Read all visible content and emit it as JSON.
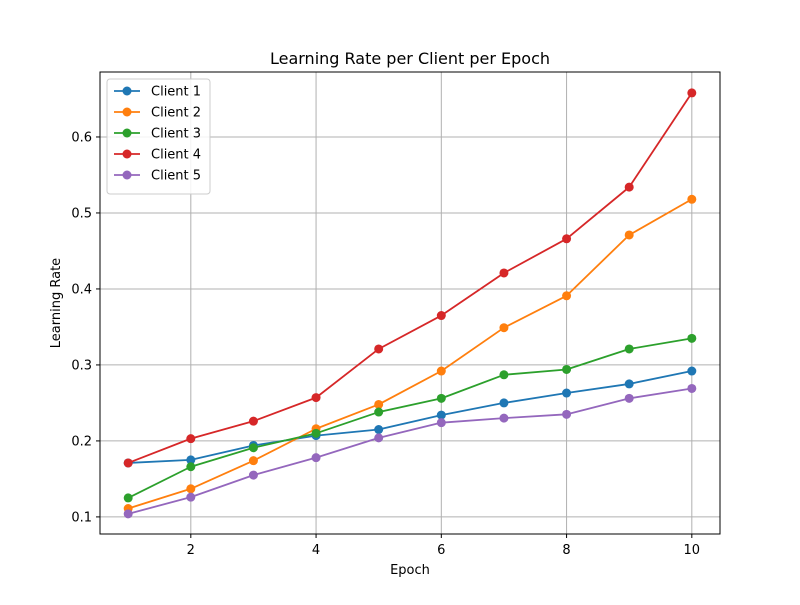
{
  "chart_data": {
    "type": "line",
    "title": "Learning Rate per Client per Epoch",
    "xlabel": "Epoch",
    "ylabel": "Learning Rate",
    "xlim": [
      0.55,
      10.45
    ],
    "ylim": [
      0.0775,
      0.6855
    ],
    "xticks": [
      2,
      4,
      6,
      8,
      10
    ],
    "yticks": [
      0.1,
      0.2,
      0.3,
      0.4,
      0.5,
      0.6
    ],
    "grid": true,
    "legend_position": "upper-left",
    "x": [
      1,
      2,
      3,
      4,
      5,
      6,
      7,
      8,
      9,
      10
    ],
    "series": [
      {
        "name": "Client 1",
        "color": "#1f77b4",
        "values": [
          0.171,
          0.175,
          0.194,
          0.207,
          0.215,
          0.234,
          0.25,
          0.263,
          0.275,
          0.292
        ]
      },
      {
        "name": "Client 2",
        "color": "#ff7f0e",
        "values": [
          0.111,
          0.137,
          0.174,
          0.216,
          0.248,
          0.292,
          0.349,
          0.391,
          0.471,
          0.518
        ]
      },
      {
        "name": "Client 3",
        "color": "#2ca02c",
        "values": [
          0.125,
          0.166,
          0.191,
          0.21,
          0.238,
          0.256,
          0.287,
          0.294,
          0.321,
          0.335
        ]
      },
      {
        "name": "Client 4",
        "color": "#d62728",
        "values": [
          0.171,
          0.203,
          0.226,
          0.257,
          0.321,
          0.365,
          0.421,
          0.466,
          0.534,
          0.658
        ]
      },
      {
        "name": "Client 5",
        "color": "#9467bd",
        "values": [
          0.104,
          0.126,
          0.155,
          0.178,
          0.204,
          0.224,
          0.23,
          0.235,
          0.256,
          0.269
        ]
      }
    ]
  }
}
